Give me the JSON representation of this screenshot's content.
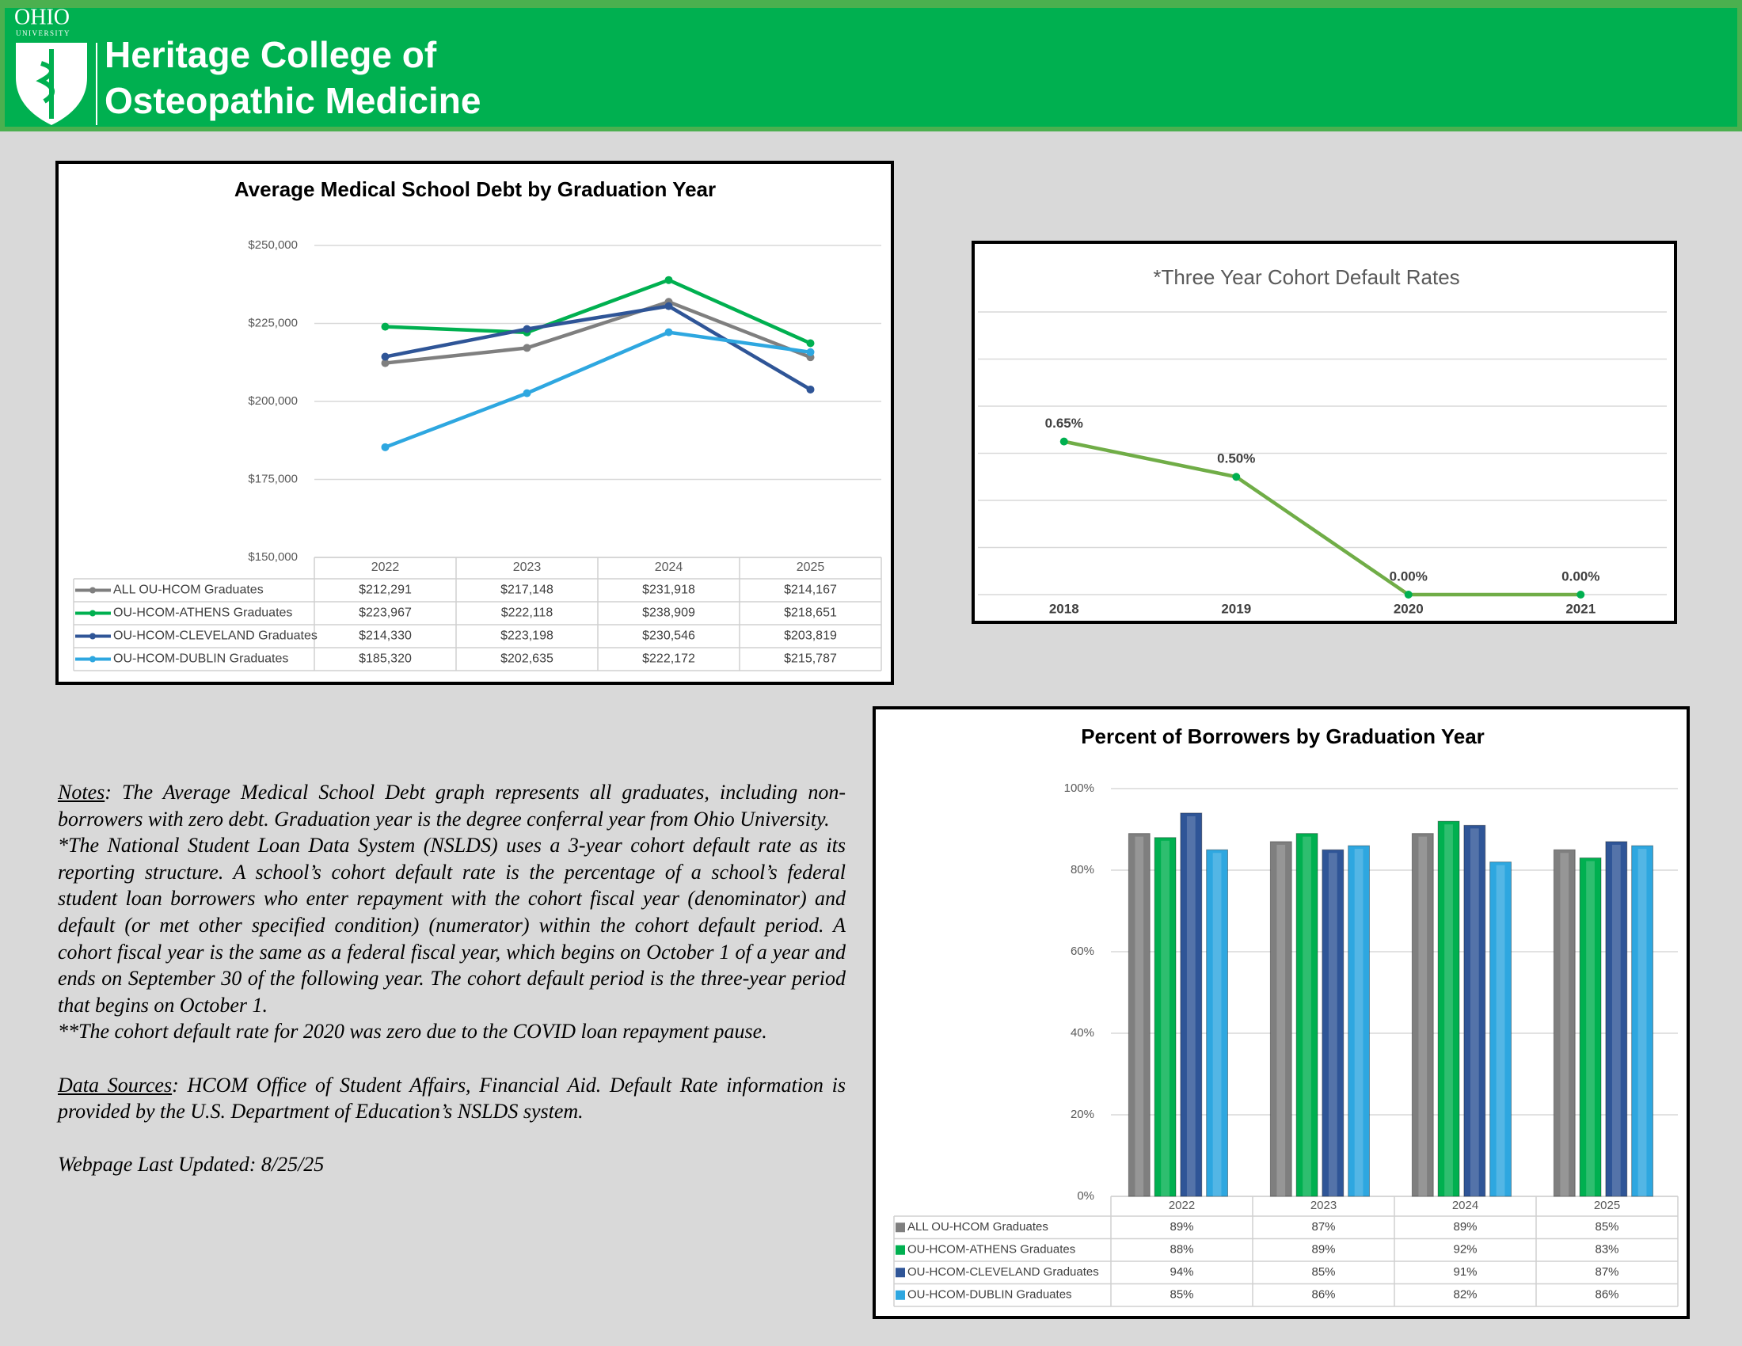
{
  "header": {
    "logo_top": "OHIO",
    "logo_sub": "UNIVERSITY",
    "title_line1": "Heritage College of",
    "title_line2": "Osteopathic Medicine"
  },
  "chart_data": [
    {
      "type": "line",
      "title": "Average Medical School Debt by Graduation Year",
      "categories": [
        "2022",
        "2023",
        "2024",
        "2025"
      ],
      "series": [
        {
          "name": "ALL OU-HCOM Graduates",
          "color": "#7f7f7f",
          "values": [
            212291,
            217148,
            231918,
            214167
          ],
          "value_labels": [
            "$212,291",
            "$217,148",
            "$231,918",
            "$214,167"
          ]
        },
        {
          "name": "OU-HCOM-ATHENS Graduates",
          "color": "#00b050",
          "values": [
            223967,
            222118,
            238909,
            218651
          ],
          "value_labels": [
            "$223,967",
            "$222,118",
            "$238,909",
            "$218,651"
          ]
        },
        {
          "name": "OU-HCOM-CLEVELAND Graduates",
          "color": "#2f5597",
          "values": [
            214330,
            223198,
            230546,
            203819
          ],
          "value_labels": [
            "$214,330",
            "$223,198",
            "$230,546",
            "$203,819"
          ]
        },
        {
          "name": "OU-HCOM-DUBLIN Graduates",
          "color": "#2ea7e0",
          "values": [
            185320,
            202635,
            222172,
            215787
          ],
          "value_labels": [
            "$185,320",
            "$202,635",
            "$222,172",
            "$215,787"
          ]
        }
      ],
      "ylim": [
        150000,
        250000
      ],
      "yticks": [
        {
          "value": 150000,
          "label": "$150,000"
        },
        {
          "value": 175000,
          "label": "$175,000"
        },
        {
          "value": 200000,
          "label": "$200,000"
        },
        {
          "value": 225000,
          "label": "$225,000"
        },
        {
          "value": 250000,
          "label": "$250,000"
        }
      ],
      "grid": true,
      "data_table": true
    },
    {
      "type": "line",
      "title": "*Three Year Cohort Default Rates",
      "categories": [
        "2018",
        "2019",
        "2020",
        "2021"
      ],
      "series": [
        {
          "color": "#70ad47",
          "marker_color": "#00b050",
          "values": [
            0.65,
            0.5,
            0,
            0
          ],
          "value_labels": [
            "0.65%",
            "0.50%",
            "0.00%",
            "0.00%"
          ]
        }
      ],
      "ylim": [
        0,
        1.2
      ],
      "yticks": [
        0,
        0.2,
        0.4,
        0.6,
        0.8,
        1,
        1.2
      ],
      "ytick_labels_shown": false,
      "grid": true,
      "data_table": false
    },
    {
      "type": "bar",
      "title": "Percent of Borrowers by Graduation Year",
      "categories": [
        "2022",
        "2023",
        "2024",
        "2025"
      ],
      "series": [
        {
          "name": "ALL OU-HCOM Graduates",
          "color": "#7f7f7f",
          "values": [
            89,
            87,
            89,
            85
          ],
          "value_labels": [
            "89%",
            "87%",
            "89%",
            "85%"
          ]
        },
        {
          "name": "OU-HCOM-ATHENS Graduates",
          "color": "#00b050",
          "values": [
            88,
            89,
            92,
            83
          ],
          "value_labels": [
            "88%",
            "89%",
            "92%",
            "83%"
          ]
        },
        {
          "name": "OU-HCOM-CLEVELAND Graduates",
          "color": "#2f5597",
          "values": [
            94,
            85,
            91,
            87
          ],
          "value_labels": [
            "94%",
            "85%",
            "91%",
            "87%"
          ]
        },
        {
          "name": "OU-HCOM-DUBLIN Graduates",
          "color": "#2ea7e0",
          "values": [
            85,
            86,
            82,
            86
          ],
          "value_labels": [
            "85%",
            "86%",
            "82%",
            "86%"
          ]
        }
      ],
      "ylim": [
        0,
        100
      ],
      "yticks": [
        {
          "value": 0,
          "label": "0%"
        },
        {
          "value": 20,
          "label": "20%"
        },
        {
          "value": 40,
          "label": "40%"
        },
        {
          "value": 60,
          "label": "60%"
        },
        {
          "value": 80,
          "label": "80%"
        },
        {
          "value": 100,
          "label": "100%"
        }
      ],
      "grid": true,
      "data_table": true
    }
  ],
  "notes": {
    "notes_label": "Notes",
    "notes_text": ": The Average Medical School Debt graph represents all graduates, including non-borrowers with zero debt. Graduation year is the degree conferral year from Ohio University.",
    "cdr_text": "*The National Student Loan Data System (NSLDS) uses a 3-year cohort default rate as its reporting structure. A school’s cohort default rate is the percentage of a school’s federal student loan borrowers who enter repayment with the cohort fiscal year (denominator) and default (or met other specified condition) (numerator) within the cohort default period. A cohort fiscal year is the same as a federal fiscal year, which begins on October 1 of a year and ends on September 30 of the following year. The cohort default period is the three-year period that begins on October 1.",
    "covid_text": "**The cohort default rate for 2020 was zero due to the COVID loan repayment pause.",
    "sources_label": "Data Sources",
    "sources_text": ": HCOM Office of Student Affairs, Financial Aid. Default Rate information is provided by the U.S. Department of Education’s NSLDS system.",
    "updated": "Webpage Last Updated: 8/25/25"
  }
}
